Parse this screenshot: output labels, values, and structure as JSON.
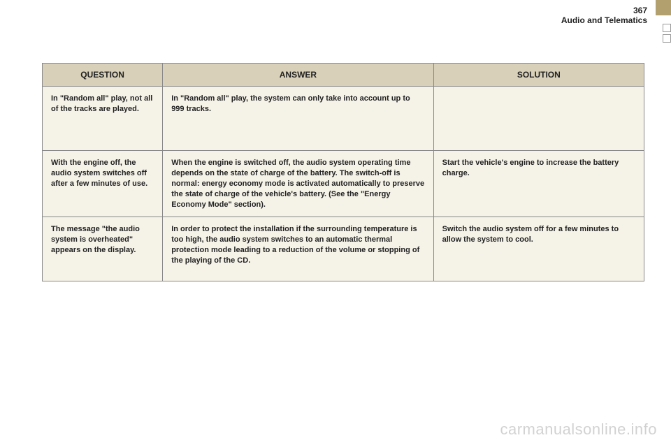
{
  "header": {
    "page_number": "367",
    "section_title": "Audio and Telematics"
  },
  "table": {
    "columns": [
      "QUESTION",
      "ANSWER",
      "SOLUTION"
    ],
    "rows": [
      {
        "question": "In \"Random all\" play, not all of the tracks are played.",
        "answer": "In \"Random all\" play, the system can only take into account up to 999 tracks.",
        "solution": ""
      },
      {
        "question": "With the engine off, the audio system switches off after a few minutes of use.",
        "answer": "When the engine is switched off, the audio system operating time depends on the state of charge of the battery.\nThe switch-off is normal: energy economy mode is activated automatically to preserve the state of charge of the vehicle's battery. (See the \"Energy Economy Mode\" section).",
        "solution": "Start the vehicle's engine to increase the battery charge."
      },
      {
        "question": "The message \"the audio system is overheated\" appears on the display.",
        "answer": "In order to protect the installation if the surrounding temperature is too high, the audio system switches to an automatic thermal protection mode leading to a reduction of the volume or stopping of the playing of the CD.",
        "solution": "Switch the audio system off for a few minutes to allow the system to cool."
      }
    ]
  },
  "watermark": "carmanualsonline.info",
  "colors": {
    "accent": "#b3a06f",
    "header_bg": "#d8d0b8",
    "row_bg": "#f5f2e8",
    "border": "#888888",
    "text": "#222222",
    "watermark": "rgba(0,0,0,0.18)"
  }
}
